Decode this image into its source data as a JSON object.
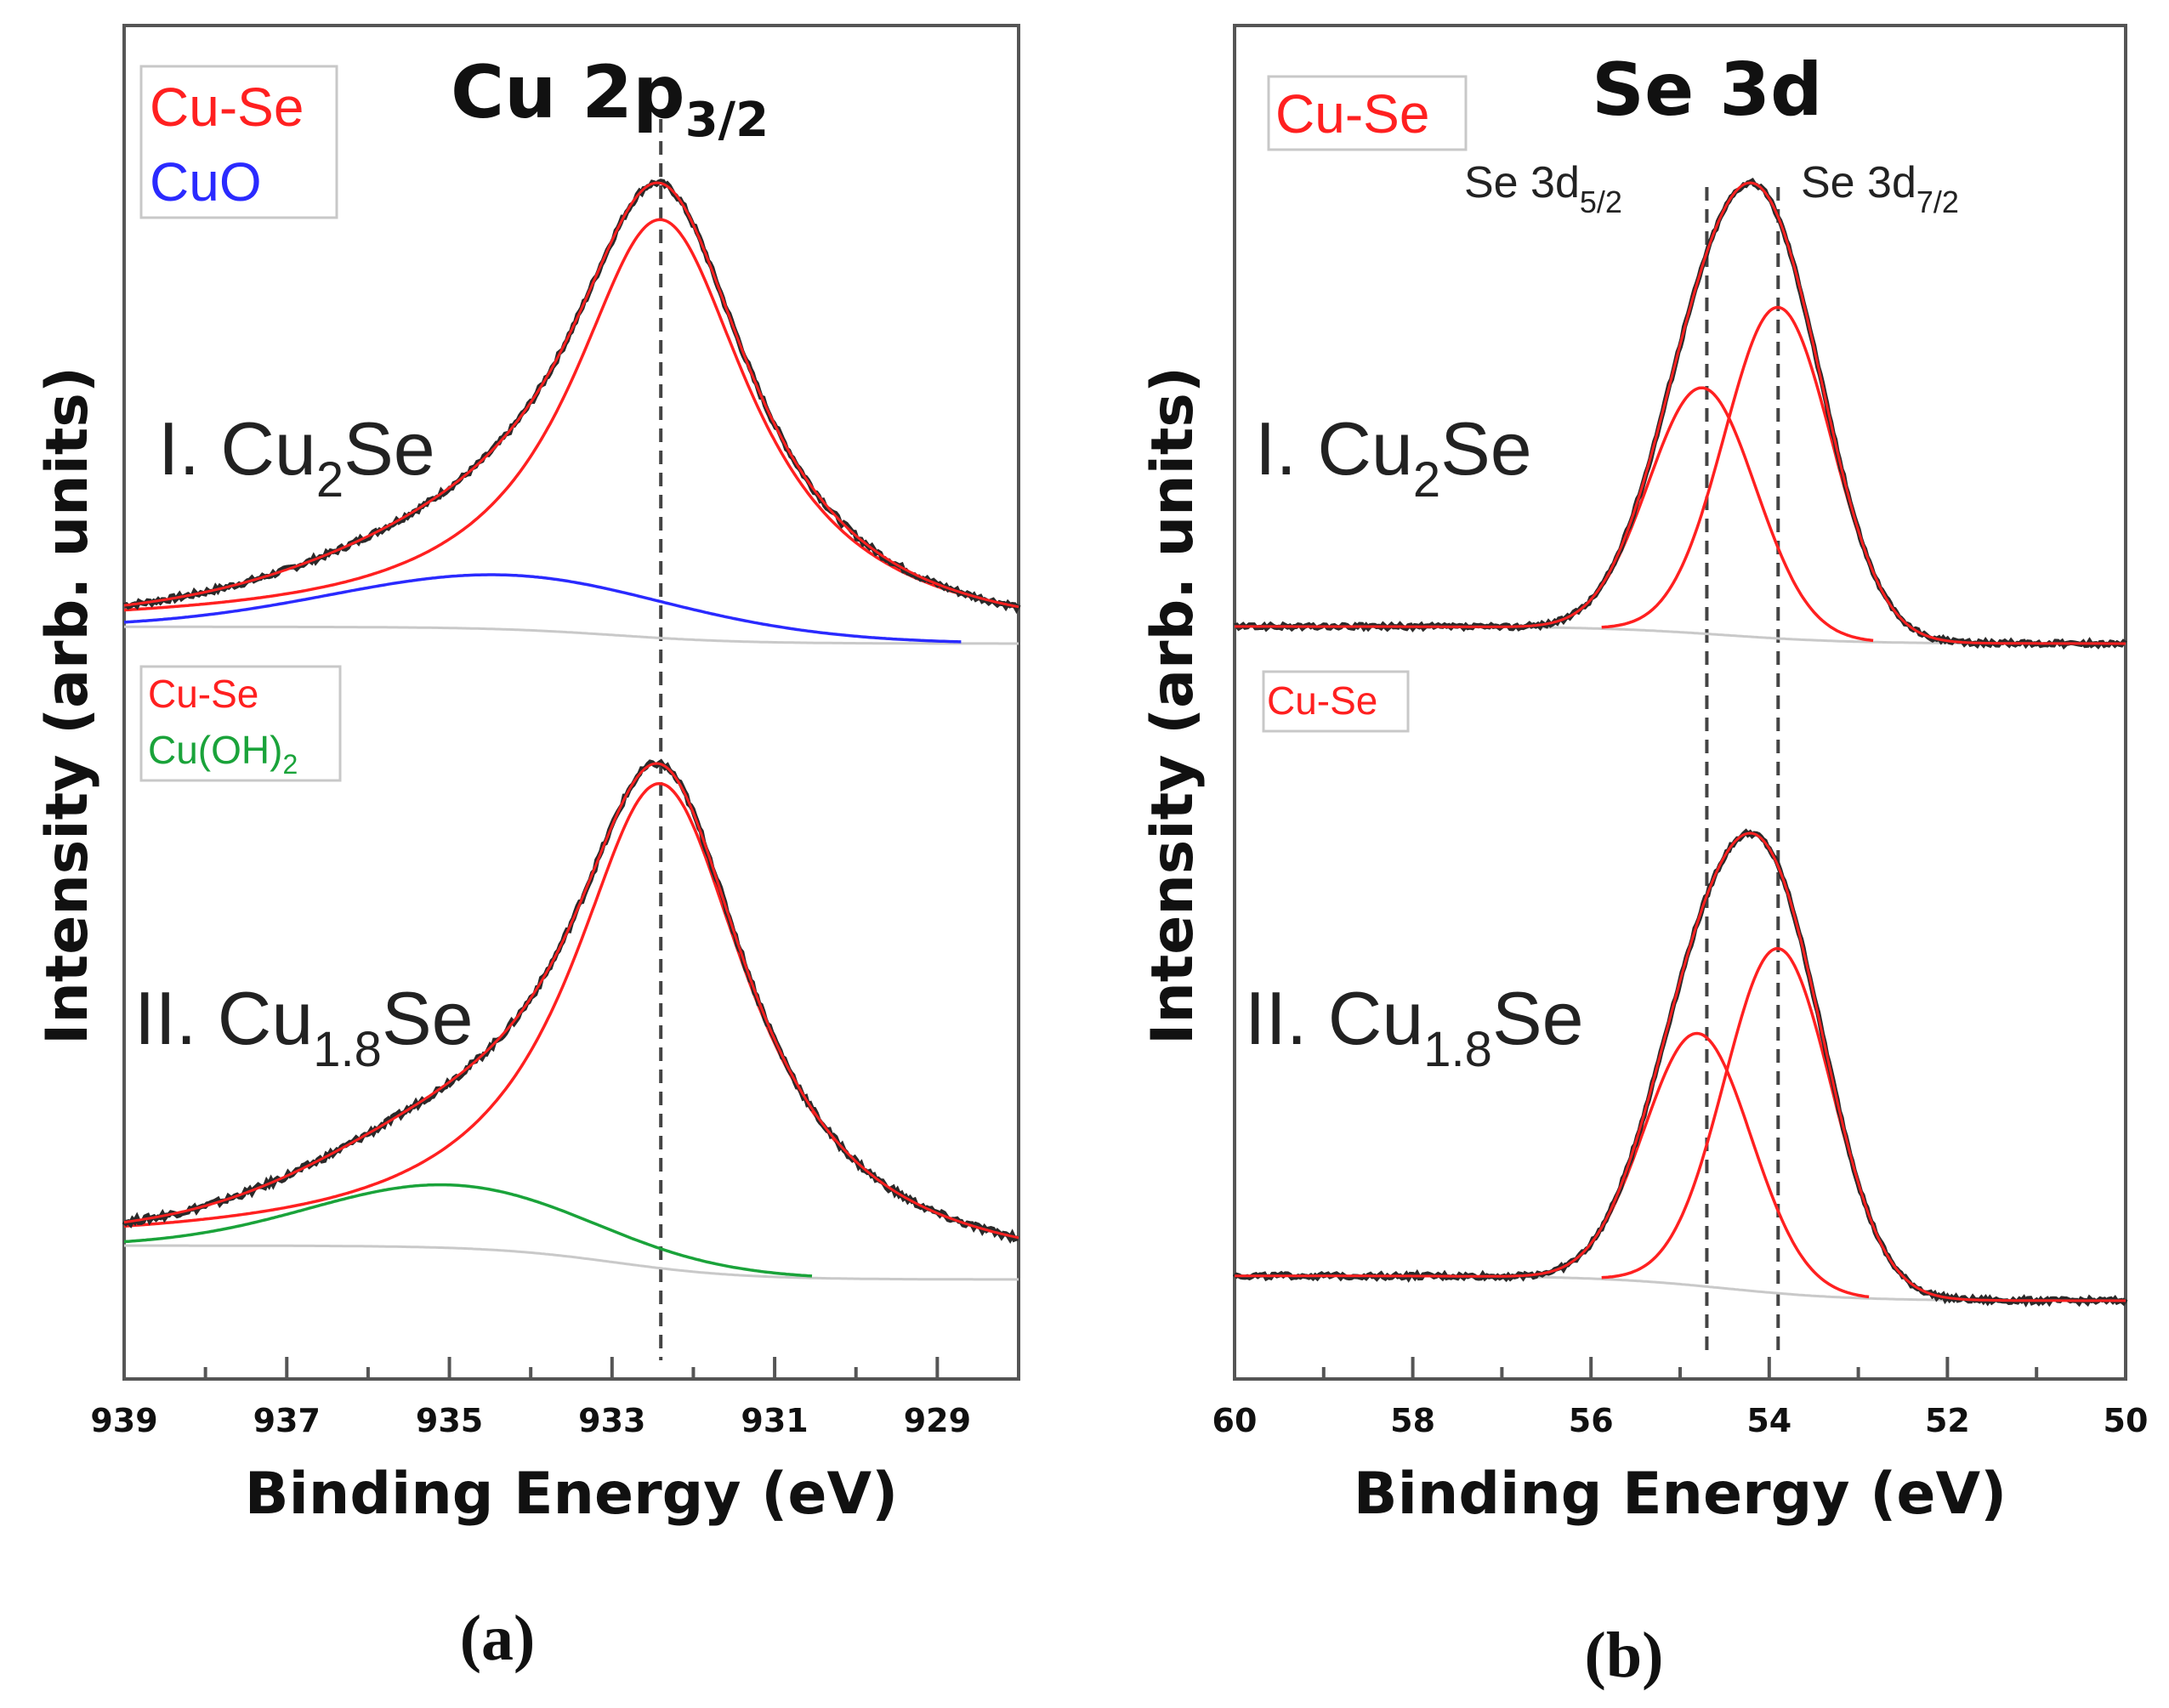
{
  "chart_data": [
    {
      "type": "line",
      "panel": "(a)",
      "title": "Cu 2p",
      "title_sub": "3/2",
      "xlabel": "Binding Energy (eV)",
      "ylabel": "Intensity (arb. units)",
      "xlim": [
        939,
        928
      ],
      "x_ticks": [
        "939",
        "937",
        "935",
        "933",
        "931",
        "929"
      ],
      "reference_line": 932.4,
      "legends": [
        {
          "entries": [
            {
              "label": "Cu-Se",
              "color": "#ff2020"
            },
            {
              "label": "CuO",
              "color": "#2a2aff"
            }
          ]
        },
        {
          "entries": [
            {
              "label": "Cu-Se",
              "color": "#ff2020"
            },
            {
              "label": "Cu(OH)",
              "sub": "2",
              "color": "#1aa33a"
            }
          ]
        }
      ],
      "spectra": [
        {
          "label_main": "I. Cu",
          "label_sub": "2",
          "label_tail": "Se",
          "baseline_low": 0.0,
          "baseline_high": 0.04,
          "components": [
            {
              "name": "Cu-Se",
              "color": "#ff2020",
              "center": 932.4,
              "height": 1.0,
              "width": 1.35,
              "shape": "lorentzian"
            },
            {
              "name": "CuO",
              "color": "#2a2aff",
              "center": 934.3,
              "height": 0.13,
              "width": 3.0,
              "shape": "gaussian"
            }
          ]
        },
        {
          "label_main": "II. Cu",
          "label_sub": "1.8",
          "label_tail": "Se",
          "baseline_low": 0.0,
          "baseline_high": 0.07,
          "components": [
            {
              "name": "Cu-Se",
              "color": "#ff2020",
              "center": 932.4,
              "height": 1.0,
              "width": 1.35,
              "shape": "lorentzian"
            },
            {
              "name": "Cu(OH)2",
              "color": "#1aa33a",
              "center": 935.0,
              "height": 0.13,
              "width": 2.4,
              "shape": "gaussian"
            }
          ]
        }
      ]
    },
    {
      "type": "line",
      "panel": "(b)",
      "title": "Se 3d",
      "xlabel": "Binding Energy (eV)",
      "ylabel": "Intensity (arb. units)",
      "xlim": [
        60,
        50
      ],
      "x_ticks": [
        "60",
        "58",
        "56",
        "54",
        "52",
        "50"
      ],
      "reference_lines": [
        54.7,
        53.9
      ],
      "peak_labels": [
        {
          "text": "Se 3d",
          "sub": "5/2"
        },
        {
          "text": "Se 3d",
          "sub": "7/2"
        }
      ],
      "legends": [
        {
          "entries": [
            {
              "label": "Cu-Se",
              "color": "#ff2020"
            }
          ]
        },
        {
          "entries": [
            {
              "label": "Cu-Se",
              "color": "#ff2020"
            }
          ]
        }
      ],
      "spectra": [
        {
          "label_main": "I. Cu",
          "label_sub": "2",
          "label_tail": "Se",
          "baseline_low": 0.0,
          "baseline_high": 0.05,
          "components": [
            {
              "name": "Se 3d5/2",
              "color": "#ff2020",
              "center": 54.75,
              "height": 0.72,
              "width": 0.85,
              "shape": "gaussian"
            },
            {
              "name": "Se 3d7/2",
              "color": "#ff2020",
              "center": 53.9,
              "height": 0.97,
              "width": 0.85,
              "shape": "gaussian"
            }
          ]
        },
        {
          "label_main": "II. Cu",
          "label_sub": "1.8",
          "label_tail": "Se",
          "baseline_low": 0.0,
          "baseline_high": 0.07,
          "components": [
            {
              "name": "Se 3d5/2",
              "color": "#ff2020",
              "center": 54.8,
              "height": 0.71,
              "width": 0.85,
              "shape": "gaussian"
            },
            {
              "name": "Se 3d7/2",
              "color": "#ff2020",
              "center": 53.9,
              "height": 0.97,
              "width": 0.85,
              "shape": "gaussian"
            }
          ]
        }
      ]
    }
  ]
}
